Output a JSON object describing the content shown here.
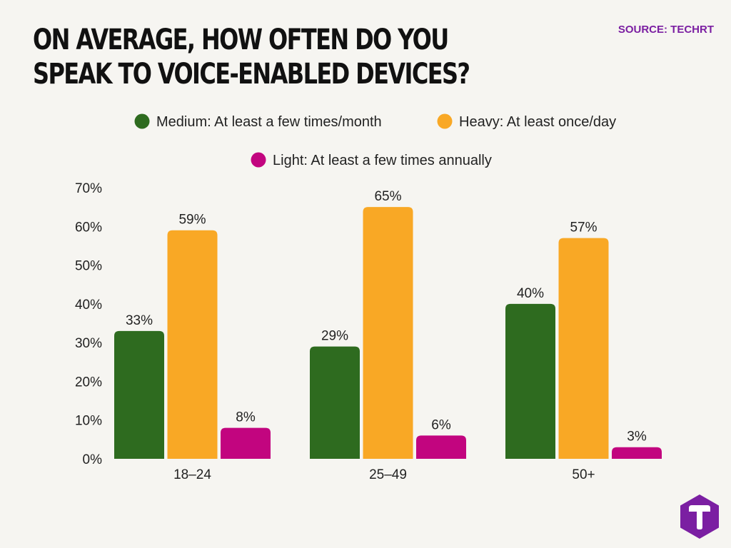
{
  "header": {
    "title": "ON AVERAGE, HOW OFTEN DO YOU SPEAK TO VOICE-ENABLED DEVICES?",
    "source": "SOURCE: TECHRT"
  },
  "logo": {
    "icon": "techrt-logo-icon",
    "color": "#7b1fa2"
  },
  "chart_data": {
    "type": "bar",
    "categories": [
      "18–24",
      "25–49",
      "50+"
    ],
    "series": [
      {
        "name": "Medium: At least a few times/month",
        "values": [
          33,
          29,
          40
        ],
        "labels": [
          "33%",
          "29%",
          "40%"
        ],
        "color": "#2e6b1f"
      },
      {
        "name": "Heavy: At least once/day",
        "values": [
          59,
          65,
          57
        ],
        "labels": [
          "59%",
          "65%",
          "57%"
        ],
        "color": "#f9a825"
      },
      {
        "name": "Light: At least a few times annually",
        "values": [
          8,
          6,
          3
        ],
        "labels": [
          "8%",
          "6%",
          "3%"
        ],
        "color": "#c2057f"
      }
    ],
    "ylim": [
      0,
      70
    ],
    "yticks": [
      0,
      10,
      20,
      30,
      40,
      50,
      60,
      70
    ],
    "ytick_labels": [
      "0%",
      "10%",
      "20%",
      "30%",
      "40%",
      "50%",
      "60%",
      "70%"
    ],
    "grid": false,
    "legend_position": "top-center"
  }
}
